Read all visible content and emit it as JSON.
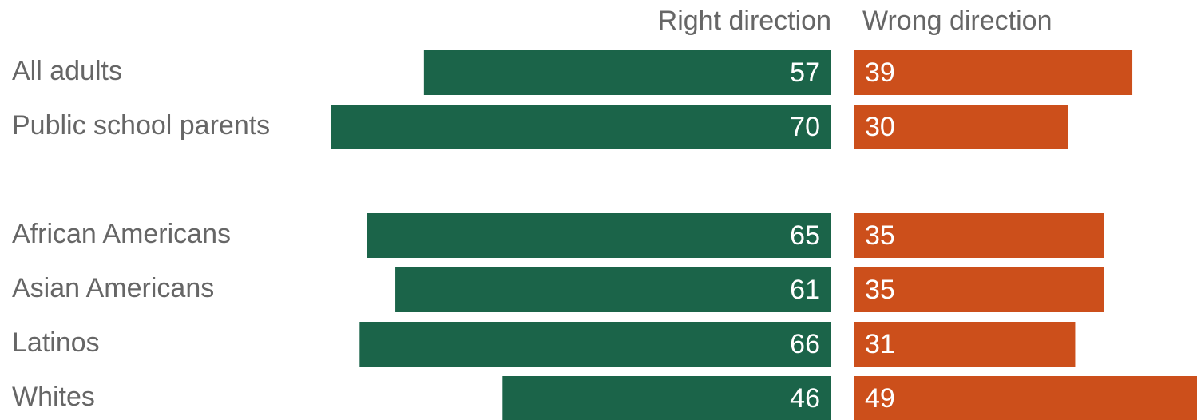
{
  "chart_data": {
    "type": "diverging-bar",
    "categories": [
      "All adults",
      "Public school parents",
      null,
      "African Americans",
      "Asian Americans",
      "Latinos",
      "Whites"
    ],
    "series": [
      {
        "name": "Right direction",
        "color": "#1b6449",
        "values": [
          57,
          70,
          null,
          65,
          61,
          66,
          46
        ]
      },
      {
        "name": "Wrong direction",
        "color": "#cc4f1b",
        "values": [
          39,
          30,
          null,
          35,
          35,
          31,
          49
        ]
      }
    ]
  }
}
